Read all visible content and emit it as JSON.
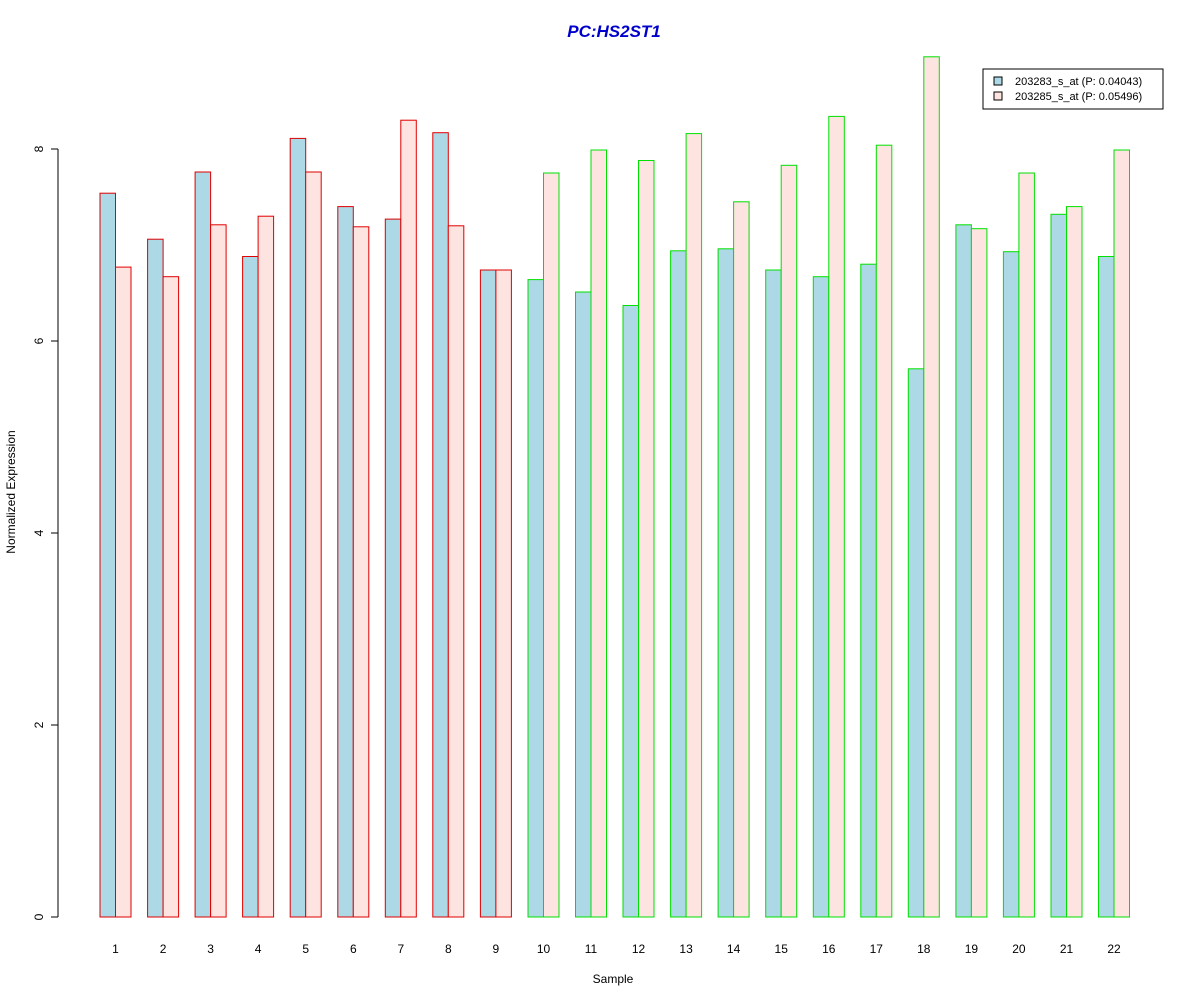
{
  "chart_data": {
    "type": "bar",
    "title": "PC:HS2ST1",
    "xlabel": "Sample",
    "ylabel": "Normalized Expression",
    "ylim": [
      0,
      9
    ],
    "yticks": [
      "0",
      "2",
      "4",
      "6",
      "8"
    ],
    "grid": false,
    "legend_position": "top-right",
    "categories": [
      "1",
      "2",
      "3",
      "4",
      "5",
      "6",
      "7",
      "8",
      "9",
      "10",
      "11",
      "12",
      "13",
      "14",
      "15",
      "16",
      "17",
      "18",
      "19",
      "20",
      "21",
      "22"
    ],
    "series": [
      {
        "name": "203283_s_at (P: 0.04043)",
        "fill": "#add8e6",
        "values": [
          7.54,
          7.06,
          7.76,
          6.88,
          8.11,
          7.4,
          7.27,
          8.17,
          6.74,
          6.64,
          6.51,
          6.37,
          6.94,
          6.96,
          6.74,
          6.67,
          6.8,
          5.71,
          7.21,
          6.93,
          7.32,
          6.88
        ]
      },
      {
        "name": "203285_s_at (P: 0.05496)",
        "fill": "#fde4e0",
        "values": [
          6.77,
          6.67,
          7.21,
          7.3,
          7.76,
          7.19,
          8.3,
          7.2,
          6.74,
          7.75,
          7.99,
          7.88,
          8.16,
          7.45,
          7.83,
          8.34,
          8.04,
          8.96,
          7.17,
          7.75,
          7.4,
          7.99
        ]
      }
    ],
    "group_border_colors": [
      "#e00000",
      "#e00000",
      "#e00000",
      "#e00000",
      "#e00000",
      "#e00000",
      "#e00000",
      "#e00000",
      "#e00000",
      "#00e000",
      "#00e000",
      "#00e000",
      "#00e000",
      "#00e000",
      "#00e000",
      "#00e000",
      "#00e000",
      "#00e000",
      "#00e000",
      "#00e000",
      "#00e000",
      "#00e000"
    ],
    "title_color": "#0000cc"
  }
}
